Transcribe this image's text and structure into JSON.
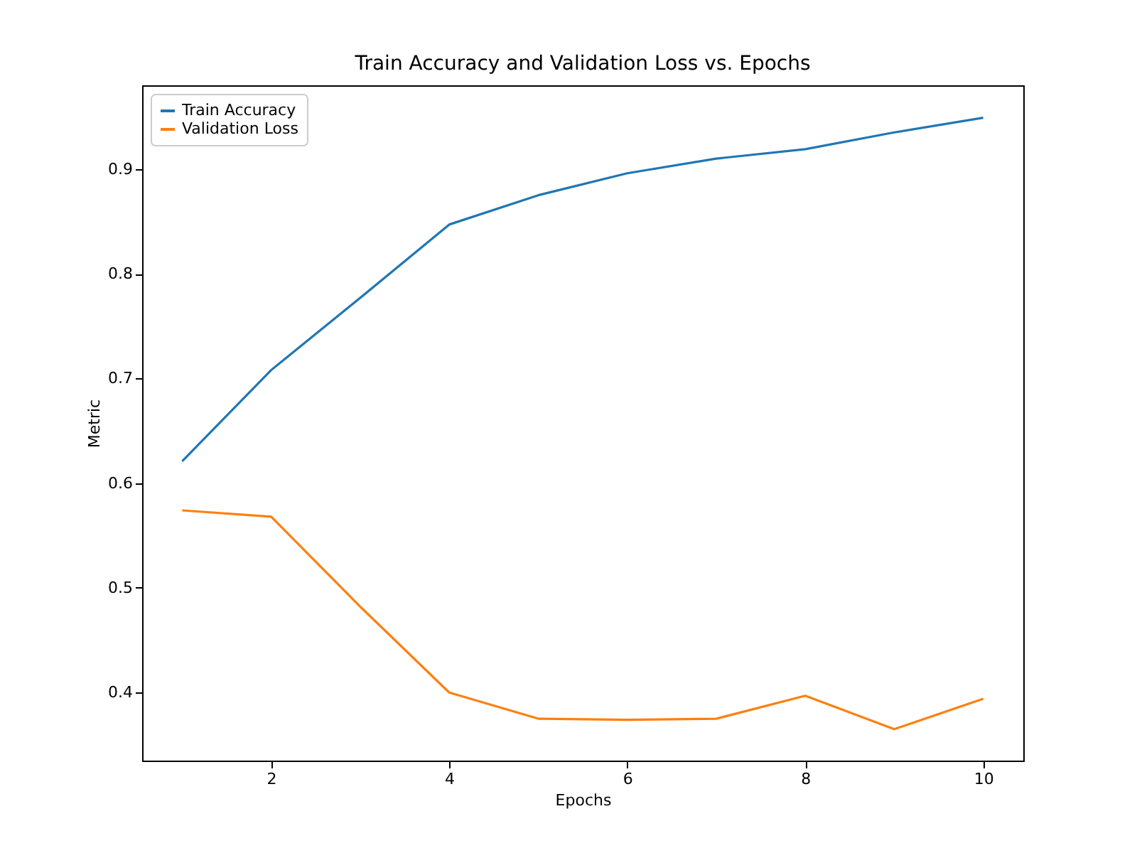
{
  "chart_data": {
    "type": "line",
    "title": "Train Accuracy and Validation Loss vs. Epochs",
    "xlabel": "Epochs",
    "ylabel": "Metric",
    "x": [
      1,
      2,
      3,
      4,
      5,
      6,
      7,
      8,
      9,
      10
    ],
    "series": [
      {
        "name": "Train Accuracy",
        "color": "#1f77b4",
        "values": [
          0.621,
          0.708,
          0.777,
          0.847,
          0.875,
          0.896,
          0.91,
          0.919,
          0.935,
          0.949
        ]
      },
      {
        "name": "Validation Loss",
        "color": "#ff7f0e",
        "values": [
          0.574,
          0.568,
          0.482,
          0.4,
          0.375,
          0.374,
          0.375,
          0.397,
          0.365,
          0.394
        ]
      }
    ],
    "xlim": [
      0.55,
      10.45
    ],
    "xticks": [
      2,
      4,
      6,
      8,
      10
    ],
    "ylim": [
      0.335,
      0.98
    ],
    "yticks": [
      0.4,
      0.5,
      0.6,
      0.7,
      0.8,
      0.9
    ],
    "grid": false,
    "legend": "top left",
    "marker": "none",
    "line_style": "solid"
  }
}
